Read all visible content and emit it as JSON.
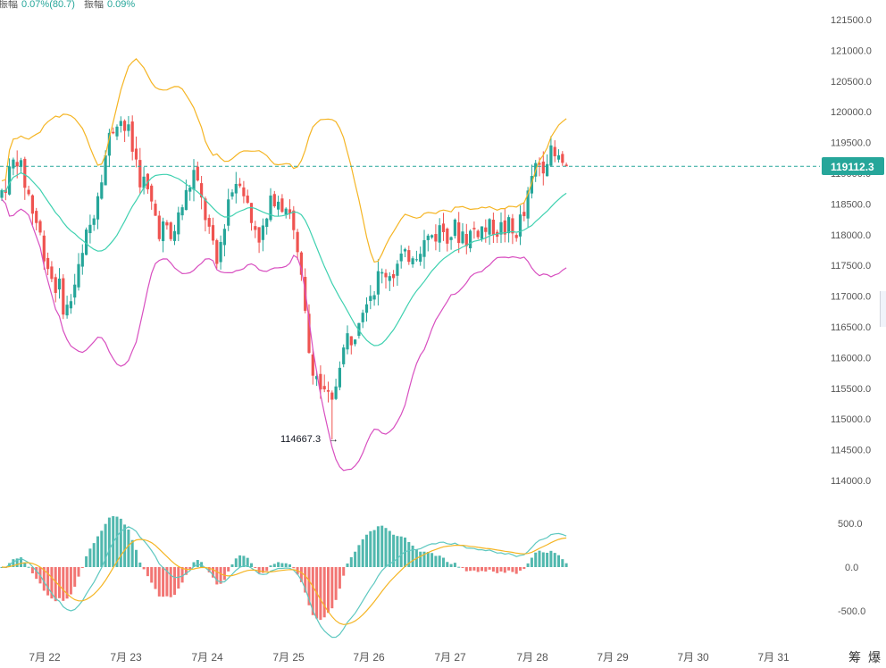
{
  "header": {
    "amp1_label": "振幅",
    "amp1_value": "0.07%(80.7)",
    "amp2_label": "振幅",
    "amp2_value": "0.09%"
  },
  "toolbar": {
    "btn1": "筹",
    "btn2": "爆"
  },
  "price_axis": {
    "ticks": [
      "121500.0",
      "121000.0",
      "120500.0",
      "120000.0",
      "119500.0",
      "119000.0",
      "118500.0",
      "118000.0",
      "117500.0",
      "117000.0",
      "116500.0",
      "116000.0",
      "115500.0",
      "115000.0",
      "114500.0",
      "114000.0"
    ]
  },
  "macd_axis": {
    "ticks": [
      "500.0",
      "0.0",
      "-500.0"
    ]
  },
  "date_axis": {
    "ticks": [
      "7月 22",
      "7月 23",
      "7月 24",
      "7月 25",
      "7月 26",
      "7月 27",
      "7月 28",
      "7月 29",
      "7月 30",
      "7月 31"
    ]
  },
  "current_price": "119112.3",
  "low_annotation": "114667.3",
  "colors": {
    "up": "#26a69a",
    "down": "#ef5350",
    "boll_upper": "#f5b524",
    "boll_mid": "#3fd1b0",
    "boll_lower": "#d84fc0",
    "macd_dif": "#5ec8c0",
    "macd_dea": "#f5b524"
  },
  "chart_data": {
    "type": "candlestick",
    "y_range": [
      113800,
      121700
    ],
    "macd_range": [
      -800,
      700
    ],
    "x_categories": [
      "7月 22",
      "7月 23",
      "7月 24",
      "7月 25",
      "7月 26",
      "7月 27",
      "7月 28",
      "7月 29",
      "7月 30",
      "7月 31"
    ],
    "last_price": 119112.3,
    "annotated_low": 114667.3,
    "close_path": [
      [
        0,
        118700
      ],
      [
        4,
        119300
      ],
      [
        9,
        118200
      ],
      [
        13,
        117300
      ],
      [
        17,
        116800
      ],
      [
        20,
        117400
      ],
      [
        24,
        118400
      ],
      [
        27,
        119300
      ],
      [
        30,
        120000
      ],
      [
        33,
        119600
      ],
      [
        36,
        119000
      ],
      [
        40,
        118300
      ],
      [
        44,
        117900
      ],
      [
        47,
        118500
      ],
      [
        50,
        119000
      ],
      [
        53,
        118300
      ],
      [
        56,
        117500
      ],
      [
        59,
        118600
      ],
      [
        62,
        119000
      ],
      [
        65,
        118200
      ],
      [
        68,
        118000
      ],
      [
        71,
        118700
      ],
      [
        75,
        118400
      ],
      [
        78,
        117200
      ],
      [
        80,
        116100
      ],
      [
        83,
        115500
      ],
      [
        86,
        115200
      ],
      [
        88,
        116000
      ],
      [
        91,
        116400
      ],
      [
        94,
        116900
      ],
      [
        97,
        117200
      ],
      [
        100,
        117400
      ],
      [
        103,
        117500
      ],
      [
        106,
        117700
      ],
      [
        109,
        117800
      ],
      [
        112,
        118000
      ],
      [
        115,
        118100
      ],
      [
        118,
        118100
      ],
      [
        121,
        118000
      ],
      [
        124,
        118100
      ],
      [
        127,
        118100
      ],
      [
        130,
        118100
      ],
      [
        133,
        118000
      ],
      [
        136,
        118300
      ],
      [
        139,
        119100
      ],
      [
        142,
        119300
      ],
      [
        145,
        119200
      ],
      [
        147,
        119100
      ]
    ]
  }
}
